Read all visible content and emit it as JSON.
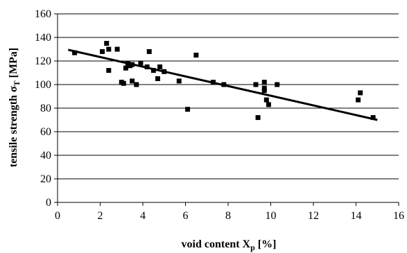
{
  "chart_data": {
    "type": "scatter",
    "title": "",
    "xlabel": {
      "main": "void content X",
      "sub": "p",
      "unit": " [%]"
    },
    "ylabel": {
      "main": "tensile strength σ",
      "sub": "T",
      "unit": " [MPa]"
    },
    "xlim": [
      0,
      16
    ],
    "ylim": [
      0,
      160
    ],
    "xticks": [
      "0",
      "2",
      "4",
      "6",
      "8",
      "10",
      "12",
      "14",
      "16"
    ],
    "yticks": [
      "0",
      "20",
      "40",
      "60",
      "80",
      "100",
      "120",
      "140",
      "160"
    ],
    "grid": "horizontal",
    "legend": "none",
    "colors": {
      "marker": "#000000",
      "trendline": "#000000",
      "grid": "#000000"
    },
    "series": [
      {
        "points": [
          [
            0.8,
            127
          ],
          [
            2.1,
            128
          ],
          [
            2.3,
            135
          ],
          [
            2.4,
            130
          ],
          [
            2.4,
            112
          ],
          [
            2.8,
            130
          ],
          [
            3.0,
            102
          ],
          [
            3.1,
            101
          ],
          [
            3.2,
            114
          ],
          [
            3.3,
            118
          ],
          [
            3.4,
            116
          ],
          [
            3.5,
            117
          ],
          [
            3.5,
            103
          ],
          [
            3.7,
            100
          ],
          [
            3.9,
            118
          ],
          [
            4.2,
            115
          ],
          [
            4.3,
            128
          ],
          [
            4.5,
            112
          ],
          [
            4.7,
            105
          ],
          [
            4.8,
            115
          ],
          [
            5.0,
            111
          ],
          [
            5.7,
            103
          ],
          [
            6.1,
            79
          ],
          [
            6.5,
            125
          ],
          [
            7.3,
            102
          ],
          [
            7.8,
            100
          ],
          [
            9.3,
            100
          ],
          [
            9.4,
            72
          ],
          [
            9.7,
            102
          ],
          [
            9.7,
            97
          ],
          [
            9.7,
            95
          ],
          [
            9.8,
            87
          ],
          [
            9.9,
            83
          ],
          [
            10.3,
            100
          ],
          [
            14.1,
            87
          ],
          [
            14.2,
            93
          ],
          [
            14.8,
            72
          ]
        ]
      }
    ],
    "trendline": {
      "x": [
        0.5,
        15.0
      ],
      "y": [
        129.5,
        70
      ]
    }
  }
}
